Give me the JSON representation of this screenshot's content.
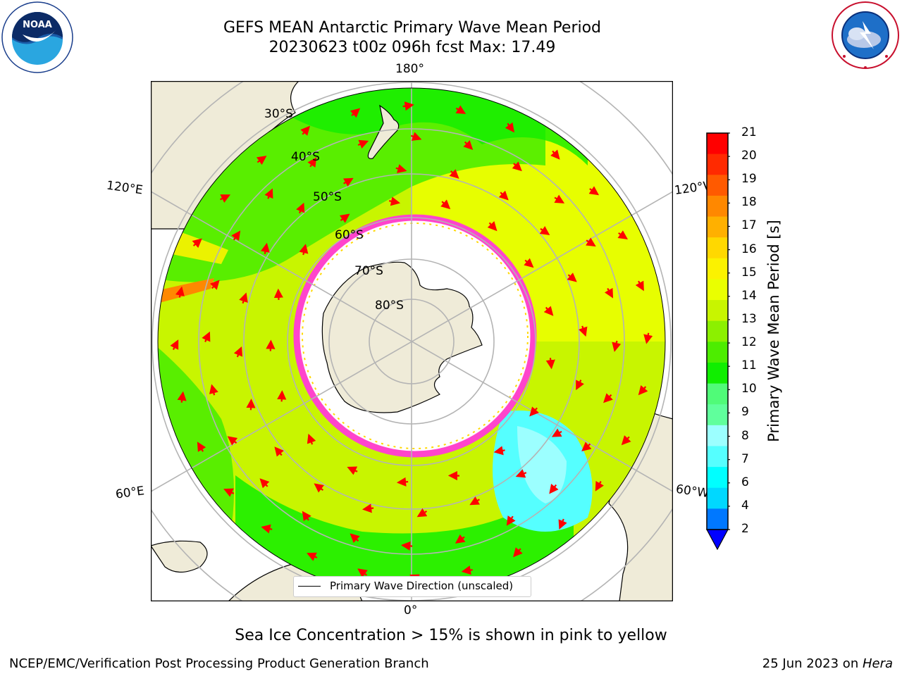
{
  "header": {
    "title_line1": "GEFS MEAN Antarctic Primary Wave Mean Period",
    "title_line2": "20230623 t00z 096h fcst   Max: 17.49"
  },
  "logos": {
    "left": {
      "text": "NOAA",
      "ring_text": "NATIONAL OCEANIC AND ATMOSPHERIC ADMINISTRATION · U.S. DEPARTMENT OF COMMERCE"
    },
    "right": {
      "ring_text": "NATIONAL WEATHER SERVICE"
    }
  },
  "map": {
    "projection": "south-polar-stereographic",
    "lat_labels": [
      "30°S",
      "40°S",
      "50°S",
      "60°S",
      "70°S",
      "80°S"
    ],
    "lon_labels": {
      "top": "180°",
      "bottom": "0°",
      "upper_left": "120°E",
      "lower_left": "60°E",
      "upper_right": "120°W",
      "lower_right": "60°W"
    },
    "legend": "Primary Wave Direction (unscaled)",
    "arrow_color": "#ff0000",
    "ice_color": "#ff44cc",
    "land_color": "#efebd8"
  },
  "colorbar": {
    "label": "Primary Wave Mean Period [s]",
    "ticks": [
      "21",
      "20",
      "19",
      "18",
      "17",
      "16",
      "15",
      "14",
      "13",
      "12",
      "11",
      "10",
      "9",
      "8",
      "7",
      "6",
      "4",
      "2"
    ],
    "colors_top_to_bottom": [
      "#ff0000",
      "#ff2a00",
      "#ff5a00",
      "#ff8800",
      "#ffb000",
      "#ffd800",
      "#fbf200",
      "#eaff00",
      "#c8f500",
      "#8cf000",
      "#4ded00",
      "#10ee00",
      "#50fb78",
      "#60ff9c",
      "#9cffff",
      "#55ffff",
      "#00ffff",
      "#00d8ff",
      "#0078ff"
    ],
    "under_color": "#0000ff"
  },
  "caption": "Sea Ice Concentration > 15% is shown in pink to yellow",
  "footer": {
    "left": "NCEP/EMC/Verification Post Processing Product Generation Branch",
    "right_prefix": "25 Jun 2023 on ",
    "right_host": "Hera"
  }
}
